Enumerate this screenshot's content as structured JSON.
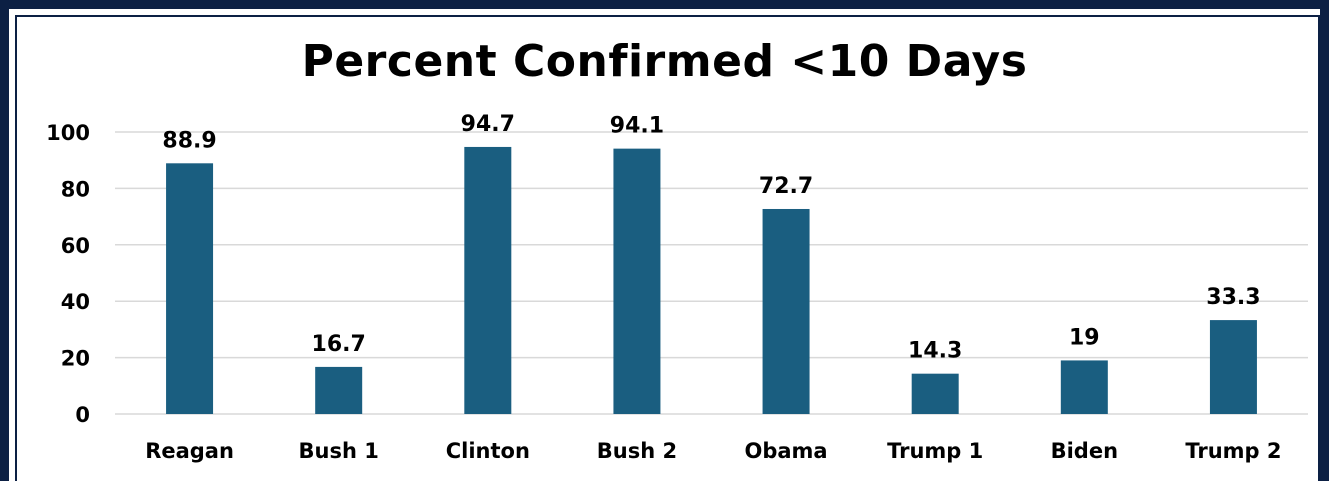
{
  "chart_data": {
    "type": "bar",
    "title": "Percent Confirmed <10 Days",
    "xlabel": "",
    "ylabel": "",
    "categories": [
      "Reagan",
      "Bush 1",
      "Clinton",
      "Bush 2",
      "Obama",
      "Trump 1",
      "Biden",
      "Trump 2"
    ],
    "values": [
      88.9,
      16.7,
      94.7,
      94.1,
      72.7,
      14.3,
      19,
      33.3
    ],
    "value_labels": [
      "88.9",
      "16.7",
      "94.7",
      "94.1",
      "72.7",
      "14.3",
      "19",
      "33.3"
    ],
    "ylim": [
      0,
      100
    ],
    "yticks": [
      0,
      20,
      40,
      60,
      80,
      100
    ],
    "ytick_labels": [
      "0",
      "20",
      "40",
      "60",
      "80",
      "100"
    ],
    "grid": true,
    "legend": "none",
    "bar_color": "#1a5e80",
    "grid_color": "#d9d9d9",
    "frame_color": "#0c2044"
  }
}
